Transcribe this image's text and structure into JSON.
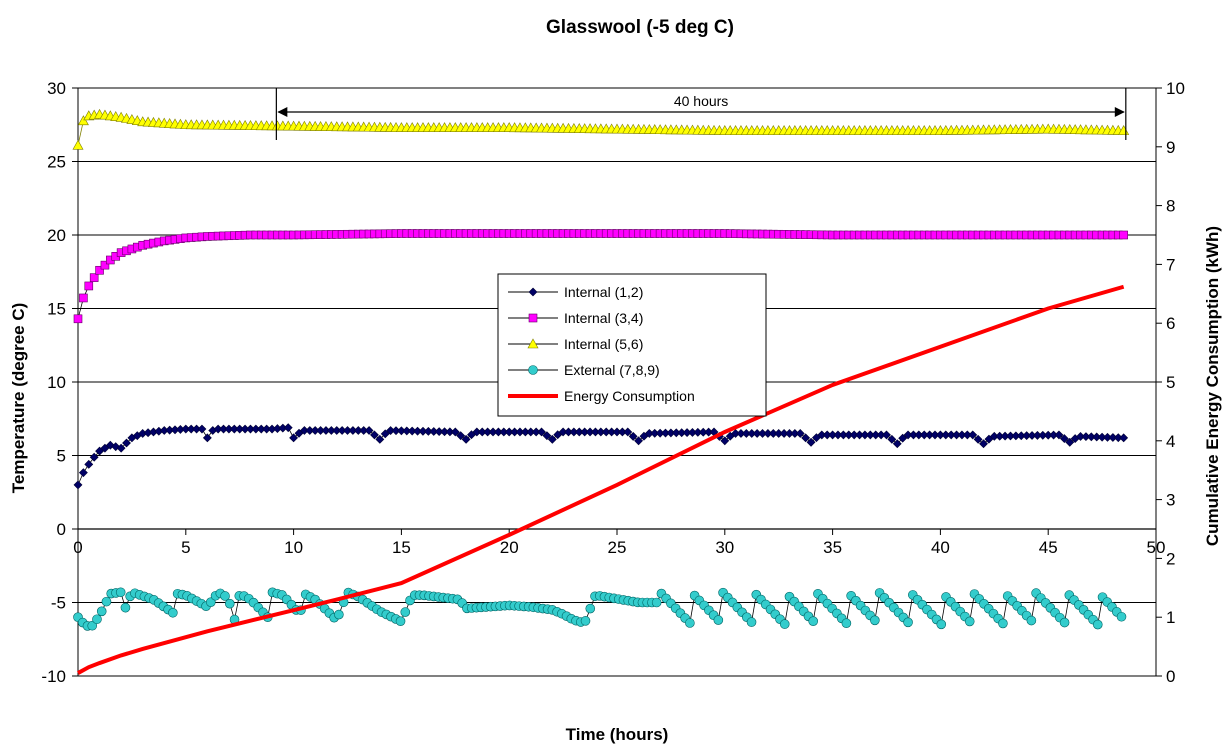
{
  "chart_data": {
    "type": "line",
    "title": "Glasswool (-5 deg C)",
    "xlabel": "Time (hours)",
    "ylabel": "Temperature (degree C)",
    "y2label": "Cumulative Energy Consumption (kWh)",
    "xlim": [
      0,
      50
    ],
    "ylim": [
      -10,
      30
    ],
    "y2lim": [
      0,
      10
    ],
    "x_ticks": [
      "0",
      "5",
      "10",
      "15",
      "20",
      "25",
      "30",
      "35",
      "40",
      "45",
      "50"
    ],
    "y_ticks": [
      "-10",
      "-5",
      "0",
      "5",
      "10",
      "15",
      "20",
      "25",
      "30"
    ],
    "y2_ticks": [
      "0",
      "1",
      "2",
      "3",
      "4",
      "5",
      "6",
      "7",
      "8",
      "9",
      "10"
    ],
    "grid": "horizontal",
    "legend_position": "center",
    "annotation": {
      "text": "40 hours",
      "x_start": 9.2,
      "x_end": 48.6
    },
    "colors": {
      "internal_12": "#000066",
      "internal_34": "#ff00ff",
      "internal_56": "#ffff00",
      "external": "#33cccc",
      "energy": "#ff0000"
    },
    "series": [
      {
        "name": "Internal (1,2)",
        "axis": "left",
        "marker": "diamond",
        "profile": {
          "x": [
            0,
            0.3,
            0.7,
            1.0,
            1.5,
            2.0,
            2.5,
            3.0,
            4.0,
            5.0,
            5.8,
            6.0,
            6.3,
            7.0,
            8.0,
            9.0,
            9.8,
            10.0,
            10.4,
            13.5,
            14.0,
            14.4,
            17.5,
            18.0,
            18.4,
            21.5,
            22.0,
            22.4,
            25.5,
            26.0,
            26.4,
            29.5,
            30.0,
            30.4,
            33.5,
            34.0,
            34.4,
            37.5,
            38.0,
            38.4,
            41.5,
            42.0,
            42.4,
            45.5,
            46.0,
            46.4,
            48.5
          ],
          "y": [
            3.0,
            4.0,
            4.8,
            5.3,
            5.7,
            5.5,
            6.2,
            6.5,
            6.7,
            6.8,
            6.8,
            6.2,
            6.8,
            6.8,
            6.8,
            6.8,
            6.9,
            6.2,
            6.7,
            6.7,
            6.1,
            6.7,
            6.6,
            6.1,
            6.6,
            6.6,
            6.1,
            6.6,
            6.6,
            6.0,
            6.5,
            6.6,
            6.0,
            6.5,
            6.5,
            5.9,
            6.4,
            6.4,
            5.8,
            6.4,
            6.4,
            5.8,
            6.3,
            6.4,
            5.9,
            6.3,
            6.2
          ]
        }
      },
      {
        "name": "Internal (3,4)",
        "axis": "left",
        "marker": "square",
        "profile": {
          "x": [
            0,
            0.3,
            0.6,
            1.0,
            1.5,
            2.0,
            3.0,
            4.0,
            5.0,
            6.0,
            8.0,
            10.0,
            15.0,
            20.0,
            25.0,
            30.0,
            35.0,
            40.0,
            45.0,
            48.5
          ],
          "y": [
            14.3,
            16.0,
            16.8,
            17.6,
            18.3,
            18.8,
            19.3,
            19.6,
            19.8,
            19.9,
            20.0,
            20.0,
            20.1,
            20.1,
            20.1,
            20.1,
            20.0,
            20.0,
            20.0,
            20.0
          ]
        }
      },
      {
        "name": "Internal (5,6)",
        "axis": "left",
        "marker": "triangle",
        "profile": {
          "x": [
            0,
            0.2,
            0.5,
            1.0,
            1.5,
            2.0,
            3.0,
            5.0,
            10.0,
            15.0,
            20.0,
            25.0,
            30.0,
            35.0,
            40.0,
            45.0,
            48.5
          ],
          "y": [
            26.1,
            27.7,
            28.1,
            28.2,
            28.1,
            28.0,
            27.7,
            27.5,
            27.4,
            27.3,
            27.3,
            27.2,
            27.1,
            27.1,
            27.1,
            27.2,
            27.1
          ]
        }
      },
      {
        "name": "External (7,8,9)",
        "axis": "left",
        "marker": "circle",
        "profile": {
          "x": [
            0,
            0.3,
            0.6,
            1.0,
            1.5,
            2.0,
            2.1,
            2.5,
            3.5,
            4.5,
            4.6,
            5.0,
            6.0,
            6.5,
            7.0,
            7.2,
            7.5,
            8.0,
            8.8,
            9.0,
            9.5,
            10.3,
            10.5,
            11.0,
            12.0,
            12.5,
            13.0,
            14.0,
            15.0,
            15.5,
            16.0,
            17.7,
            18.0,
            20.0,
            21.0,
            22.0,
            22.5,
            23.0,
            23.5,
            24.0,
            26.0,
            27.0,
            30.0,
            35.0,
            40.0,
            45.0,
            48.5
          ],
          "y": [
            -6.0,
            -6.5,
            -6.7,
            -5.9,
            -4.4,
            -4.3,
            -5.7,
            -4.3,
            -4.8,
            -5.8,
            -4.4,
            -4.5,
            -5.3,
            -4.3,
            -4.7,
            -6.6,
            -4.4,
            -4.8,
            -6.0,
            -4.3,
            -4.5,
            -5.8,
            -4.4,
            -4.8,
            -6.2,
            -4.3,
            -4.6,
            -5.6,
            -6.3,
            -4.5,
            -4.5,
            -4.8,
            -5.4,
            -5.2,
            -5.3,
            -5.5,
            -5.8,
            -6.2,
            -6.4,
            -4.5,
            -5.0,
            -5.0,
            -5.0,
            -5.0,
            -5.0,
            -5.0,
            -5.0
          ]
        }
      },
      {
        "name": "Energy Consumption",
        "axis": "right",
        "marker": "none",
        "x": [
          0,
          0.5,
          1,
          2,
          3,
          4,
          5,
          6,
          8,
          10,
          12,
          15,
          20,
          25,
          30,
          35,
          40,
          45,
          48.5
        ],
        "y": [
          0.05,
          0.15,
          0.22,
          0.35,
          0.46,
          0.56,
          0.66,
          0.76,
          0.94,
          1.12,
          1.3,
          1.58,
          2.4,
          3.25,
          4.15,
          4.95,
          5.6,
          6.25,
          6.62
        ]
      }
    ]
  },
  "legend": {
    "items": [
      "Internal (1,2)",
      "Internal (3,4)",
      "Internal (5,6)",
      "External (7,8,9)",
      "Energy Consumption"
    ]
  }
}
